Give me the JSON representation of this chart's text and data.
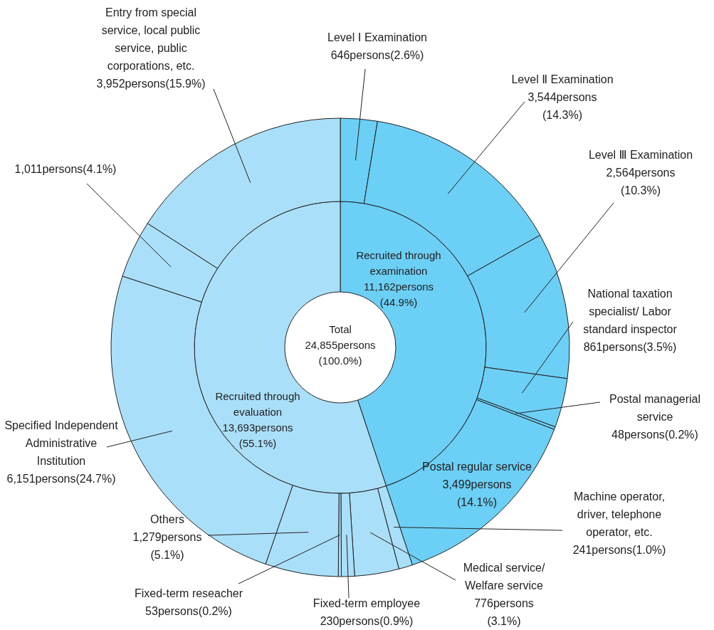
{
  "chart_data": [
    {
      "type": "donut",
      "categories": [
        "Level Ⅰ Examination",
        "Level Ⅱ Examination",
        "Level Ⅲ Examination",
        "National taxation specialist/ Labor standard inspector",
        "Postal managerial service",
        "Postal regular service",
        "Machine operator, driver, telephone operator, etc.",
        "Medical service/ Welfare service",
        "Fixed-term employee",
        "Fixed-term reseacher",
        "Others",
        "Specified Independent Administrative Institution",
        null,
        "Entry from special service, local public service, public corporations, etc."
      ],
      "values": [
        646,
        3544,
        2564,
        861,
        48,
        3499,
        241,
        776,
        230,
        53,
        1279,
        6151,
        1011,
        3952
      ],
      "colors": [
        "#6ccff6",
        "#6ccff6",
        "#6ccff6",
        "#6ccff6",
        "#6ccff6",
        "#6ccff6",
        "#aadff9",
        "#aadff9",
        "#aadff9",
        "#aadff9",
        "#aadff9",
        "#aadff9",
        "#aadff9",
        "#aadff9"
      ],
      "value_labels": [
        "646persons(2.6%)",
        "3,544persons (14.3%)",
        "2,564persons (10.3%)",
        "861persons(3.5%)",
        "48persons(0.2%)",
        "3,499persons (14.1%)",
        "241persons(1.0%)",
        "776persons (3.1%)",
        "230persons(0.9%)",
        "53persons(0.2%)",
        "1,279persons (5.1%)",
        "6,151persons(24.7%)",
        "1,011persons(4.1%)",
        "3,952persons(15.9%)"
      ]
    },
    {
      "type": "donut",
      "categories": [
        "Recruited through examination",
        "Recruited through evaluation"
      ],
      "values": [
        11162,
        13693
      ],
      "colors": [
        "#6ccff6",
        "#aadff9"
      ],
      "value_labels": [
        "11,162persons (44.9%)",
        "13,693persons (55.1%)"
      ],
      "annotations": [
        "Total 24,855persons (100.0%)"
      ]
    }
  ]
}
